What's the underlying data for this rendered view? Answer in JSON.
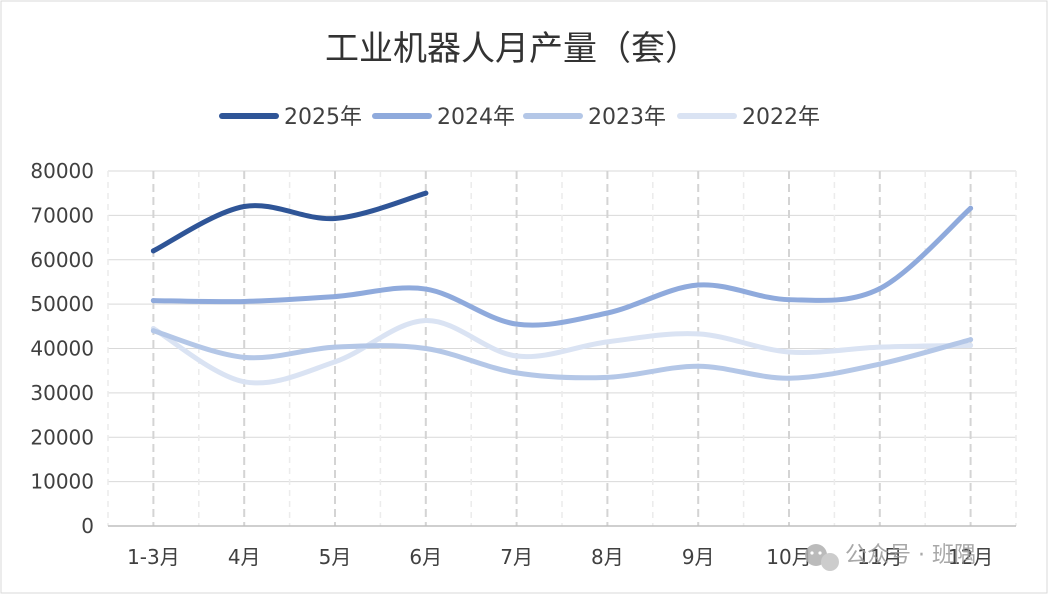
{
  "chart_data": {
    "type": "line",
    "title": "工业机器人月产量（套）",
    "xlabel": "",
    "ylabel": "",
    "categories": [
      "1-3月",
      "4月",
      "5月",
      "6月",
      "7月",
      "8月",
      "9月",
      "10月",
      "11月",
      "12月"
    ],
    "ylim": [
      0,
      80000
    ],
    "yticks": [
      "0",
      "10000",
      "20000",
      "30000",
      "40000",
      "50000",
      "60000",
      "70000",
      "80000"
    ],
    "grid": true,
    "legend_position": "top",
    "series": [
      {
        "name": "2025年",
        "color": "#2f5597",
        "values": [
          62000,
          72000,
          69300,
          75000,
          null,
          null,
          null,
          null,
          null,
          null
        ]
      },
      {
        "name": "2024年",
        "color": "#8faadc",
        "values": [
          50800,
          50600,
          51700,
          53400,
          45500,
          48000,
          54300,
          51000,
          53500,
          71600
        ]
      },
      {
        "name": "2023年",
        "color": "#b4c7e7",
        "values": [
          44000,
          38000,
          40300,
          40000,
          34500,
          33500,
          36000,
          33300,
          36500,
          42000
        ]
      },
      {
        "name": "2022年",
        "color": "#dae3f3",
        "values": [
          44500,
          32500,
          37000,
          46300,
          38300,
          41500,
          43300,
          39200,
          40300,
          40700
        ]
      }
    ]
  },
  "watermark": {
    "icon": "wechat-icon",
    "text": "公众号 · 班隅"
  }
}
